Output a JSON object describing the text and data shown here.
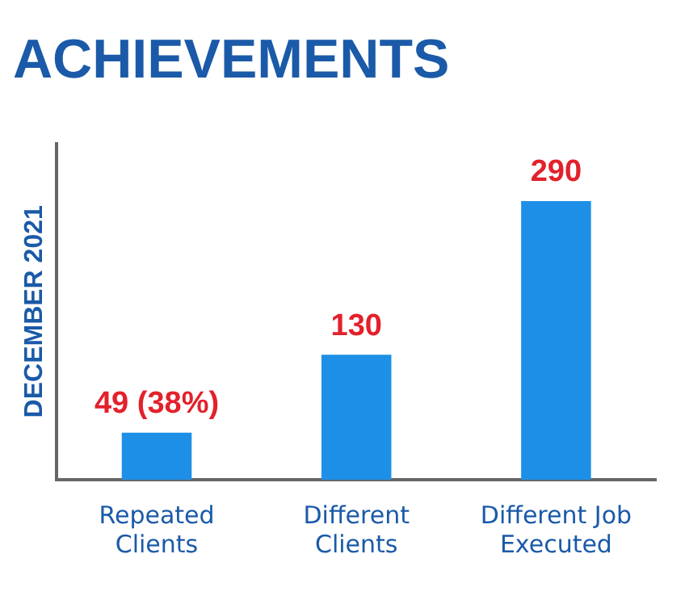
{
  "chart_data": {
    "type": "bar",
    "title": "ACHIEVEMENTS",
    "ylabel": "DECEMBER 2021",
    "categories": [
      "Repeated Clients",
      "Different Clients",
      "Different Job Executed"
    ],
    "values": [
      49,
      130,
      290
    ],
    "color": "#1e8fe6",
    "value_labels": [
      "49 (38%)",
      "130",
      "290"
    ],
    "grid": false,
    "legend": false
  }
}
